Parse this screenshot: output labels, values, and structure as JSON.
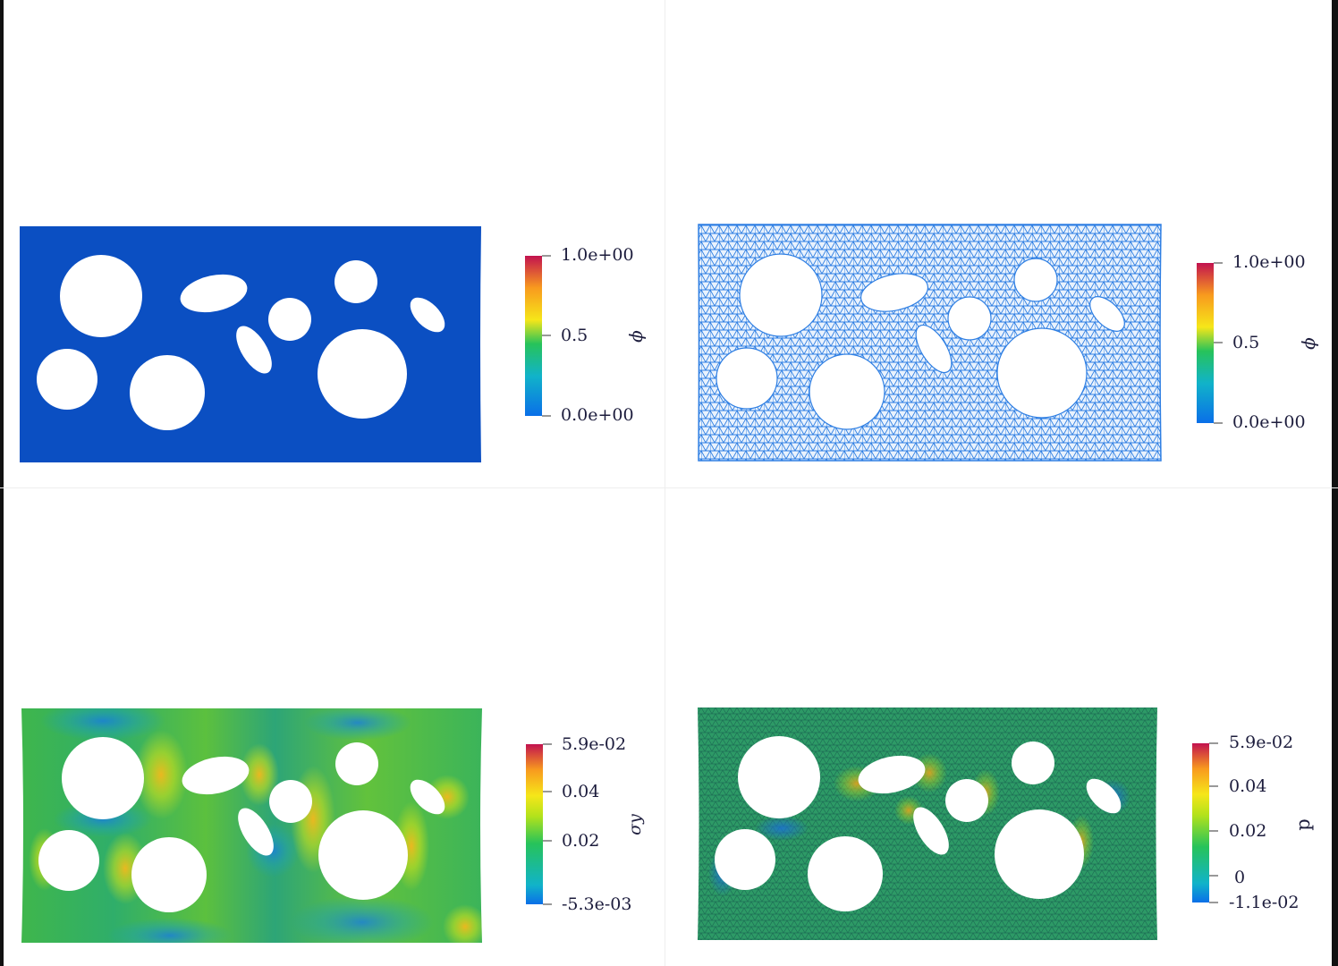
{
  "panels": [
    {
      "id": "phi-field",
      "field": "phi",
      "fill": "#0b4fc2",
      "mesh": false,
      "colorbar": {
        "title": "ϕ",
        "ticks": [
          "1.0e+00",
          "0.5",
          "0.0e+00"
        ]
      }
    },
    {
      "id": "phi-mesh",
      "field": "phi",
      "fill": "#5aa0ef",
      "mesh": true,
      "colorbar": {
        "title": "ϕ",
        "ticks": [
          "1.0e+00",
          "0.5",
          "0.0e+00"
        ]
      }
    },
    {
      "id": "sigma-y-field",
      "field": "sigma_y",
      "fill": "#38b04a",
      "mesh": false,
      "colorbar": {
        "title": "σy",
        "ticks": [
          "5.9e-02",
          "0.04",
          "0.02",
          "-5.3e-03"
        ]
      }
    },
    {
      "id": "p-mesh",
      "field": "p",
      "fill": "#2a9a62",
      "mesh": true,
      "colorbar": {
        "title": "p",
        "ticks": [
          "5.9e-02",
          "0.04",
          "0.02",
          "0",
          "-1.1e-02"
        ]
      }
    }
  ],
  "colormap": [
    "#3a4cc0",
    "#0a7ee8",
    "#11b3c9",
    "#27c35a",
    "#b3e21b",
    "#f6e619",
    "#f89a1e",
    "#e7472a",
    "#c2124f"
  ]
}
